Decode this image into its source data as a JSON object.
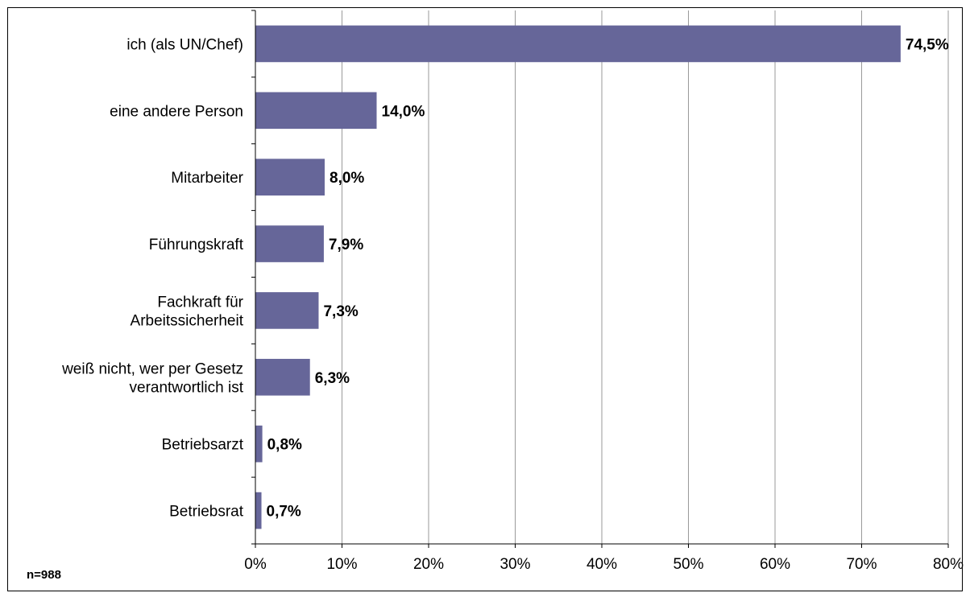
{
  "note": "n=988",
  "chart_data": {
    "type": "bar",
    "orientation": "horizontal",
    "categories": [
      [
        "ich (als UN/Chef)"
      ],
      [
        "eine andere Person"
      ],
      [
        "Mitarbeiter"
      ],
      [
        "Führungskraft"
      ],
      [
        "Fachkraft für",
        "Arbeitssicherheit"
      ],
      [
        "weiß nicht, wer per Gesetz",
        "verantwortlich ist"
      ],
      [
        "Betriebsarzt"
      ],
      [
        "Betriebsrat"
      ]
    ],
    "values": [
      74.5,
      14.0,
      8.0,
      7.9,
      7.3,
      6.3,
      0.8,
      0.7
    ],
    "data_labels": [
      "74,5%",
      "14,0%",
      "8,0%",
      "7,9%",
      "7,3%",
      "6,3%",
      "0,8%",
      "0,7%"
    ],
    "x_ticks": [
      "0%",
      "10%",
      "20%",
      "30%",
      "40%",
      "50%",
      "60%",
      "70%",
      "80%"
    ],
    "xlim": [
      0,
      80
    ],
    "grid": true,
    "bar_color": "#666699",
    "title": "",
    "xlabel": "",
    "ylabel": ""
  }
}
